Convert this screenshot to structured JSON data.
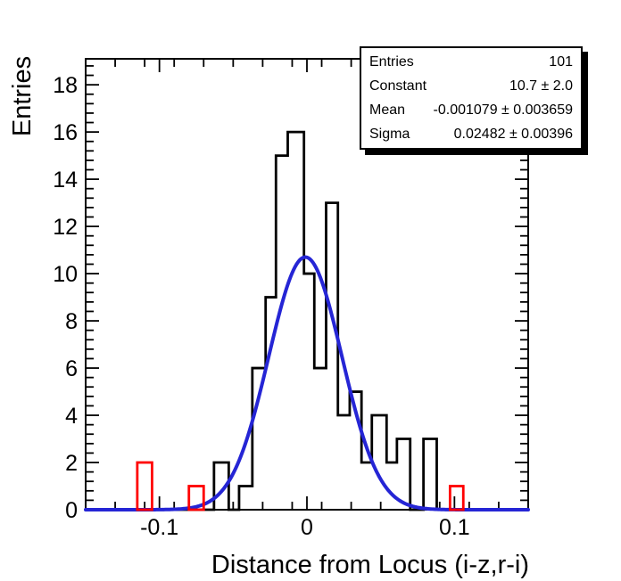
{
  "chart_data": {
    "type": "bar",
    "subtype": "step-histogram-with-gaussian-fit",
    "title": "",
    "xlabel": "Distance from Locus (i-z,r-i)",
    "ylabel": "Entries",
    "xlim": [
      -0.15,
      0.15
    ],
    "ylim": [
      0,
      19.1
    ],
    "grid": false,
    "x_major_ticks": [
      {
        "value": -0.1,
        "label": "-0.1"
      },
      {
        "value": 0,
        "label": "0"
      },
      {
        "value": 0.1,
        "label": "0.1"
      }
    ],
    "x_minor_step": 0.02,
    "y_major_ticks": [
      {
        "value": 0,
        "label": "0"
      },
      {
        "value": 2,
        "label": "2"
      },
      {
        "value": 4,
        "label": "4"
      },
      {
        "value": 6,
        "label": "6"
      },
      {
        "value": 8,
        "label": "8"
      },
      {
        "value": 10,
        "label": "10"
      },
      {
        "value": 12,
        "label": "12"
      },
      {
        "value": 14,
        "label": "14"
      },
      {
        "value": 16,
        "label": "16"
      },
      {
        "value": 18,
        "label": "18"
      }
    ],
    "y_minor_step": 0.4,
    "main_histogram": {
      "color": "#000000",
      "line_width": 2.8,
      "total_entries": 101,
      "segments": [
        {
          "x0": -0.063,
          "x1": -0.053,
          "y": 2
        },
        {
          "x0": -0.053,
          "x1": -0.046,
          "y": 0
        },
        {
          "x0": -0.046,
          "x1": -0.037,
          "y": 1
        },
        {
          "x0": -0.037,
          "x1": -0.028,
          "y": 6
        },
        {
          "x0": -0.028,
          "x1": -0.021,
          "y": 9
        },
        {
          "x0": -0.021,
          "x1": -0.013,
          "y": 15
        },
        {
          "x0": -0.013,
          "x1": -0.002,
          "y": 16
        },
        {
          "x0": -0.002,
          "x1": 0.005,
          "y": 10
        },
        {
          "x0": 0.005,
          "x1": 0.013,
          "y": 6
        },
        {
          "x0": 0.013,
          "x1": 0.021,
          "y": 13
        },
        {
          "x0": 0.021,
          "x1": 0.029,
          "y": 4
        },
        {
          "x0": 0.029,
          "x1": 0.037,
          "y": 5
        },
        {
          "x0": 0.037,
          "x1": 0.044,
          "y": 2
        },
        {
          "x0": 0.044,
          "x1": 0.054,
          "y": 4
        },
        {
          "x0": 0.054,
          "x1": 0.061,
          "y": 2
        },
        {
          "x0": 0.061,
          "x1": 0.07,
          "y": 3
        },
        {
          "x0": 0.07,
          "x1": 0.079,
          "y": 0
        },
        {
          "x0": 0.079,
          "x1": 0.088,
          "y": 3
        }
      ]
    },
    "outlier_histogram": {
      "color": "#ff0000",
      "line_width": 2.8,
      "bars": [
        {
          "x0": -0.115,
          "x1": -0.105,
          "y": 2
        },
        {
          "x0": -0.08,
          "x1": -0.07,
          "y": 1
        },
        {
          "x0": 0.097,
          "x1": 0.106,
          "y": 1
        }
      ]
    },
    "fit_curve": {
      "color": "#2525d5",
      "line_width": 4,
      "function": "gaussian",
      "constant": 10.7,
      "mean": -0.001079,
      "sigma": 0.02482
    },
    "stats_box": {
      "rows": [
        {
          "label": "Entries",
          "value": "101"
        },
        {
          "label": "Constant",
          "value": "10.7 ± 2.0"
        },
        {
          "label": "Mean",
          "value": "-0.001079 ± 0.003659"
        },
        {
          "label": "Sigma",
          "value": "0.02482 ± 0.00396"
        }
      ]
    }
  }
}
